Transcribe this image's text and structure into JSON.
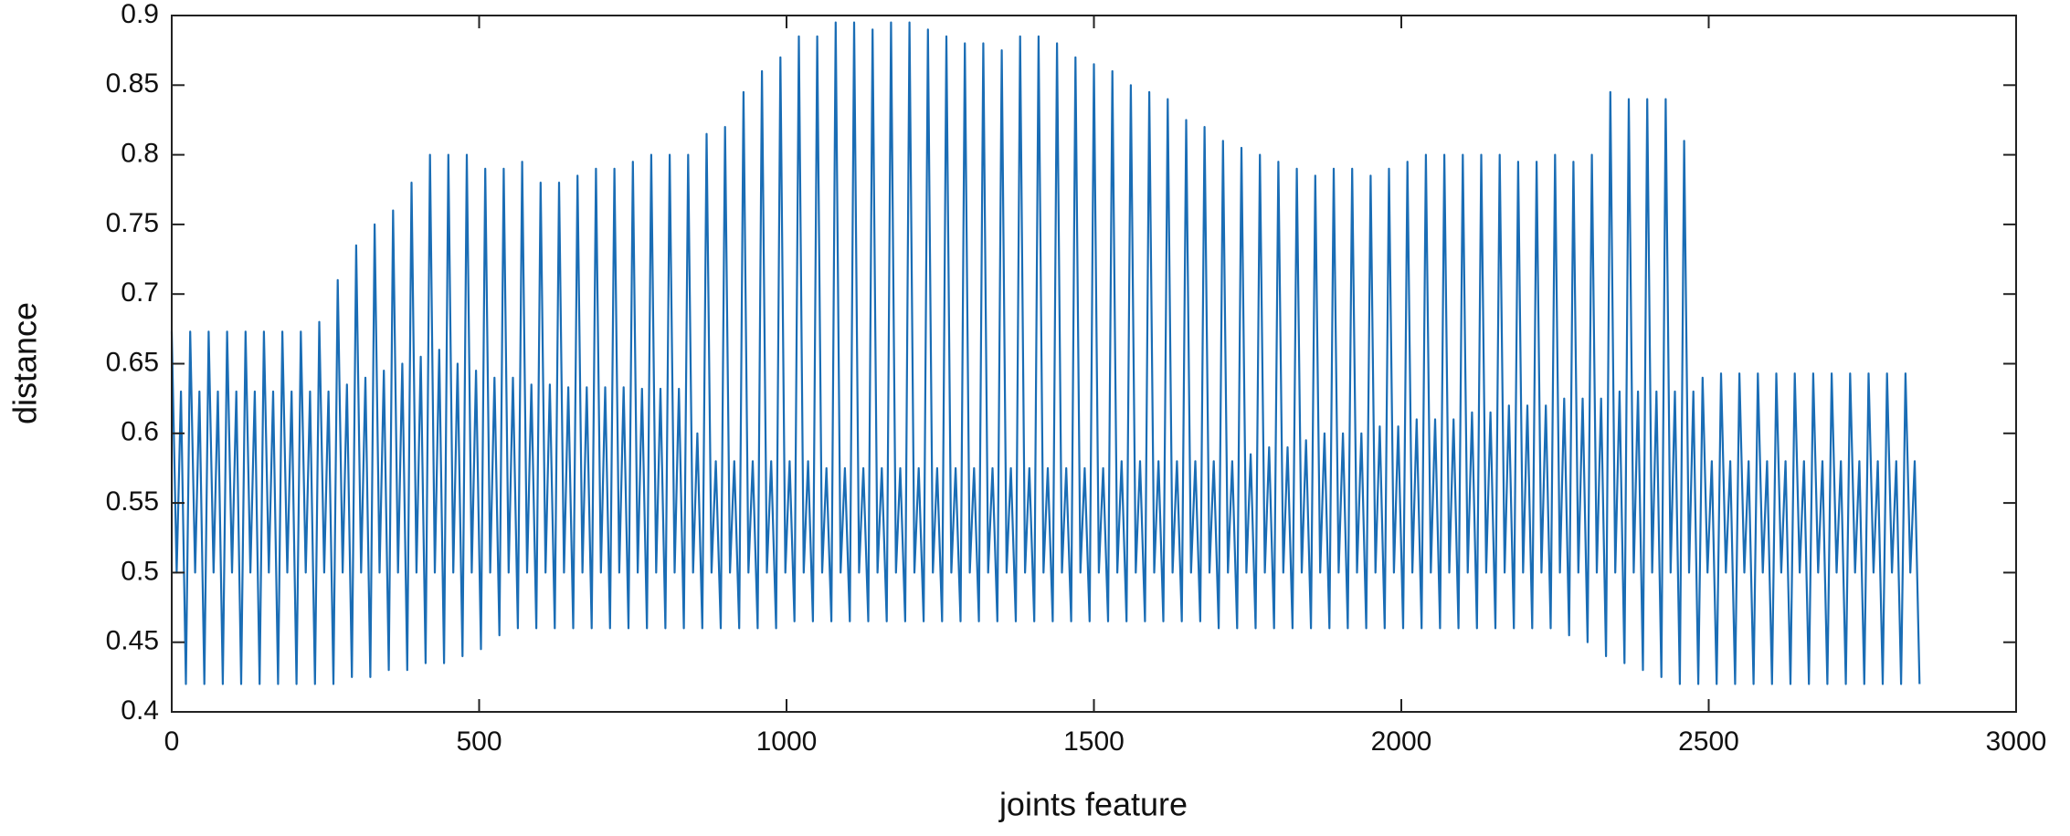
{
  "chart_data": {
    "type": "line",
    "xlabel": "joints feature",
    "ylabel": "distance",
    "color": "#1a6db5",
    "xlim": [
      0,
      3000
    ],
    "xticks": [
      0,
      500,
      1000,
      1500,
      2000,
      2500,
      3000
    ],
    "ylim": [
      0.4,
      0.9
    ],
    "yticks": [
      0.4,
      0.45,
      0.5,
      0.55,
      0.6,
      0.65,
      0.7,
      0.75,
      0.8,
      0.85,
      0.9
    ],
    "x": [
      0,
      8,
      15,
      23,
      30,
      38,
      45,
      53,
      60,
      68,
      75,
      83,
      90,
      98,
      105,
      113,
      120,
      128,
      135,
      143,
      150,
      158,
      165,
      173,
      180,
      188,
      195,
      203,
      210,
      218,
      225,
      233,
      240,
      248,
      255,
      263,
      270,
      278,
      285,
      293,
      300,
      308,
      315,
      323,
      330,
      338,
      345,
      353,
      360,
      368,
      375,
      383,
      390,
      398,
      405,
      413,
      420,
      428,
      435,
      443,
      450,
      458,
      465,
      473,
      480,
      488,
      495,
      503,
      510,
      518,
      525,
      533,
      540,
      548,
      555,
      563,
      570,
      578,
      585,
      593,
      600,
      608,
      615,
      623,
      630,
      638,
      645,
      653,
      660,
      668,
      675,
      683,
      690,
      698,
      705,
      713,
      720,
      728,
      735,
      743,
      750,
      758,
      765,
      773,
      780,
      788,
      795,
      803,
      810,
      818,
      825,
      833,
      840,
      848,
      855,
      863,
      870,
      878,
      885,
      893,
      900,
      908,
      915,
      923,
      930,
      938,
      945,
      953,
      960,
      968,
      975,
      983,
      990,
      998,
      1005,
      1013,
      1020,
      1028,
      1035,
      1043,
      1050,
      1058,
      1065,
      1073,
      1080,
      1088,
      1095,
      1103,
      1110,
      1118,
      1125,
      1133,
      1140,
      1148,
      1155,
      1163,
      1170,
      1178,
      1185,
      1193,
      1200,
      1208,
      1215,
      1223,
      1230,
      1238,
      1245,
      1253,
      1260,
      1268,
      1275,
      1283,
      1290,
      1298,
      1305,
      1313,
      1320,
      1328,
      1335,
      1343,
      1350,
      1358,
      1365,
      1373,
      1380,
      1388,
      1395,
      1403,
      1410,
      1418,
      1425,
      1433,
      1440,
      1448,
      1455,
      1463,
      1470,
      1478,
      1485,
      1493,
      1500,
      1508,
      1515,
      1523,
      1530,
      1538,
      1545,
      1553,
      1560,
      1568,
      1575,
      1583,
      1590,
      1598,
      1605,
      1613,
      1620,
      1628,
      1635,
      1643,
      1650,
      1658,
      1665,
      1673,
      1680,
      1688,
      1695,
      1703,
      1710,
      1718,
      1725,
      1733,
      1740,
      1748,
      1755,
      1763,
      1770,
      1778,
      1785,
      1793,
      1800,
      1808,
      1815,
      1823,
      1830,
      1838,
      1845,
      1853,
      1860,
      1868,
      1875,
      1883,
      1890,
      1898,
      1905,
      1913,
      1920,
      1928,
      1935,
      1943,
      1950,
      1958,
      1965,
      1973,
      1980,
      1988,
      1995,
      2003,
      2010,
      2018,
      2025,
      2033,
      2040,
      2048,
      2055,
      2063,
      2070,
      2078,
      2085,
      2093,
      2100,
      2108,
      2115,
      2123,
      2130,
      2138,
      2145,
      2153,
      2160,
      2168,
      2175,
      2183,
      2190,
      2198,
      2205,
      2213,
      2220,
      2228,
      2235,
      2243,
      2250,
      2258,
      2265,
      2273,
      2280,
      2288,
      2295,
      2303,
      2310,
      2318,
      2325,
      2333,
      2340,
      2348,
      2355,
      2363,
      2370,
      2378,
      2385,
      2393,
      2400,
      2408,
      2415,
      2423,
      2430,
      2438,
      2445,
      2453,
      2460,
      2468,
      2475,
      2483,
      2490,
      2498,
      2505,
      2513,
      2520,
      2528,
      2535,
      2543,
      2550,
      2558,
      2565,
      2573,
      2580,
      2588,
      2595,
      2603,
      2610,
      2618,
      2625,
      2633,
      2640,
      2648,
      2655,
      2663,
      2670,
      2678,
      2685,
      2693,
      2700,
      2708,
      2715,
      2723,
      2730,
      2738,
      2745,
      2753,
      2760,
      2768,
      2775,
      2783,
      2790,
      2798,
      2805,
      2813,
      2820,
      2828,
      2835,
      2843
    ],
    "values": [
      0.673,
      0.5,
      0.63,
      0.42,
      0.673,
      0.5,
      0.63,
      0.42,
      0.673,
      0.5,
      0.63,
      0.42,
      0.673,
      0.5,
      0.63,
      0.42,
      0.673,
      0.5,
      0.63,
      0.42,
      0.673,
      0.5,
      0.63,
      0.42,
      0.673,
      0.5,
      0.63,
      0.42,
      0.673,
      0.5,
      0.63,
      0.42,
      0.68,
      0.5,
      0.63,
      0.42,
      0.71,
      0.5,
      0.635,
      0.425,
      0.735,
      0.5,
      0.64,
      0.425,
      0.75,
      0.5,
      0.645,
      0.43,
      0.76,
      0.5,
      0.65,
      0.43,
      0.78,
      0.5,
      0.655,
      0.435,
      0.8,
      0.5,
      0.66,
      0.435,
      0.8,
      0.5,
      0.65,
      0.44,
      0.8,
      0.5,
      0.645,
      0.445,
      0.79,
      0.5,
      0.64,
      0.455,
      0.79,
      0.5,
      0.64,
      0.46,
      0.795,
      0.5,
      0.635,
      0.46,
      0.78,
      0.5,
      0.635,
      0.46,
      0.78,
      0.5,
      0.633,
      0.46,
      0.785,
      0.5,
      0.633,
      0.46,
      0.79,
      0.5,
      0.633,
      0.46,
      0.79,
      0.5,
      0.633,
      0.46,
      0.795,
      0.5,
      0.632,
      0.46,
      0.8,
      0.5,
      0.632,
      0.46,
      0.8,
      0.5,
      0.632,
      0.46,
      0.8,
      0.5,
      0.6,
      0.46,
      0.815,
      0.5,
      0.58,
      0.46,
      0.82,
      0.5,
      0.58,
      0.46,
      0.845,
      0.5,
      0.58,
      0.46,
      0.86,
      0.5,
      0.58,
      0.46,
      0.87,
      0.5,
      0.58,
      0.465,
      0.885,
      0.5,
      0.58,
      0.465,
      0.885,
      0.5,
      0.575,
      0.465,
      0.895,
      0.5,
      0.575,
      0.465,
      0.895,
      0.5,
      0.575,
      0.465,
      0.89,
      0.5,
      0.575,
      0.465,
      0.895,
      0.5,
      0.575,
      0.465,
      0.895,
      0.5,
      0.575,
      0.465,
      0.89,
      0.5,
      0.575,
      0.465,
      0.885,
      0.5,
      0.575,
      0.465,
      0.88,
      0.5,
      0.575,
      0.465,
      0.88,
      0.5,
      0.575,
      0.465,
      0.875,
      0.5,
      0.575,
      0.465,
      0.885,
      0.5,
      0.575,
      0.465,
      0.885,
      0.5,
      0.575,
      0.465,
      0.88,
      0.5,
      0.575,
      0.465,
      0.87,
      0.5,
      0.575,
      0.465,
      0.865,
      0.5,
      0.575,
      0.465,
      0.86,
      0.5,
      0.58,
      0.465,
      0.85,
      0.5,
      0.58,
      0.465,
      0.845,
      0.5,
      0.58,
      0.465,
      0.84,
      0.5,
      0.58,
      0.465,
      0.825,
      0.5,
      0.58,
      0.465,
      0.82,
      0.5,
      0.58,
      0.46,
      0.81,
      0.5,
      0.58,
      0.46,
      0.805,
      0.5,
      0.585,
      0.46,
      0.8,
      0.5,
      0.59,
      0.46,
      0.795,
      0.5,
      0.59,
      0.46,
      0.79,
      0.5,
      0.595,
      0.46,
      0.785,
      0.5,
      0.6,
      0.46,
      0.79,
      0.5,
      0.6,
      0.46,
      0.79,
      0.5,
      0.6,
      0.46,
      0.785,
      0.5,
      0.605,
      0.46,
      0.79,
      0.5,
      0.605,
      0.46,
      0.795,
      0.5,
      0.61,
      0.46,
      0.8,
      0.5,
      0.61,
      0.46,
      0.8,
      0.5,
      0.61,
      0.46,
      0.8,
      0.5,
      0.615,
      0.46,
      0.8,
      0.5,
      0.615,
      0.46,
      0.8,
      0.5,
      0.62,
      0.46,
      0.795,
      0.5,
      0.62,
      0.46,
      0.795,
      0.5,
      0.62,
      0.46,
      0.8,
      0.5,
      0.625,
      0.455,
      0.795,
      0.5,
      0.625,
      0.45,
      0.8,
      0.5,
      0.625,
      0.44,
      0.845,
      0.5,
      0.63,
      0.435,
      0.84,
      0.5,
      0.63,
      0.43,
      0.84,
      0.5,
      0.63,
      0.425,
      0.84,
      0.5,
      0.63,
      0.42,
      0.81,
      0.5,
      0.63,
      0.42,
      0.64,
      0.5,
      0.58,
      0.42,
      0.643,
      0.5,
      0.58,
      0.42,
      0.643,
      0.5,
      0.58,
      0.42,
      0.643,
      0.5,
      0.58,
      0.42,
      0.643,
      0.5,
      0.58,
      0.42,
      0.643,
      0.5,
      0.58,
      0.42,
      0.643,
      0.5,
      0.58,
      0.42,
      0.643,
      0.5,
      0.58,
      0.42,
      0.643,
      0.5,
      0.58,
      0.42,
      0.643,
      0.5,
      0.58,
      0.42,
      0.643,
      0.5,
      0.58,
      0.42,
      0.643,
      0.5,
      0.58,
      0.42
    ]
  }
}
